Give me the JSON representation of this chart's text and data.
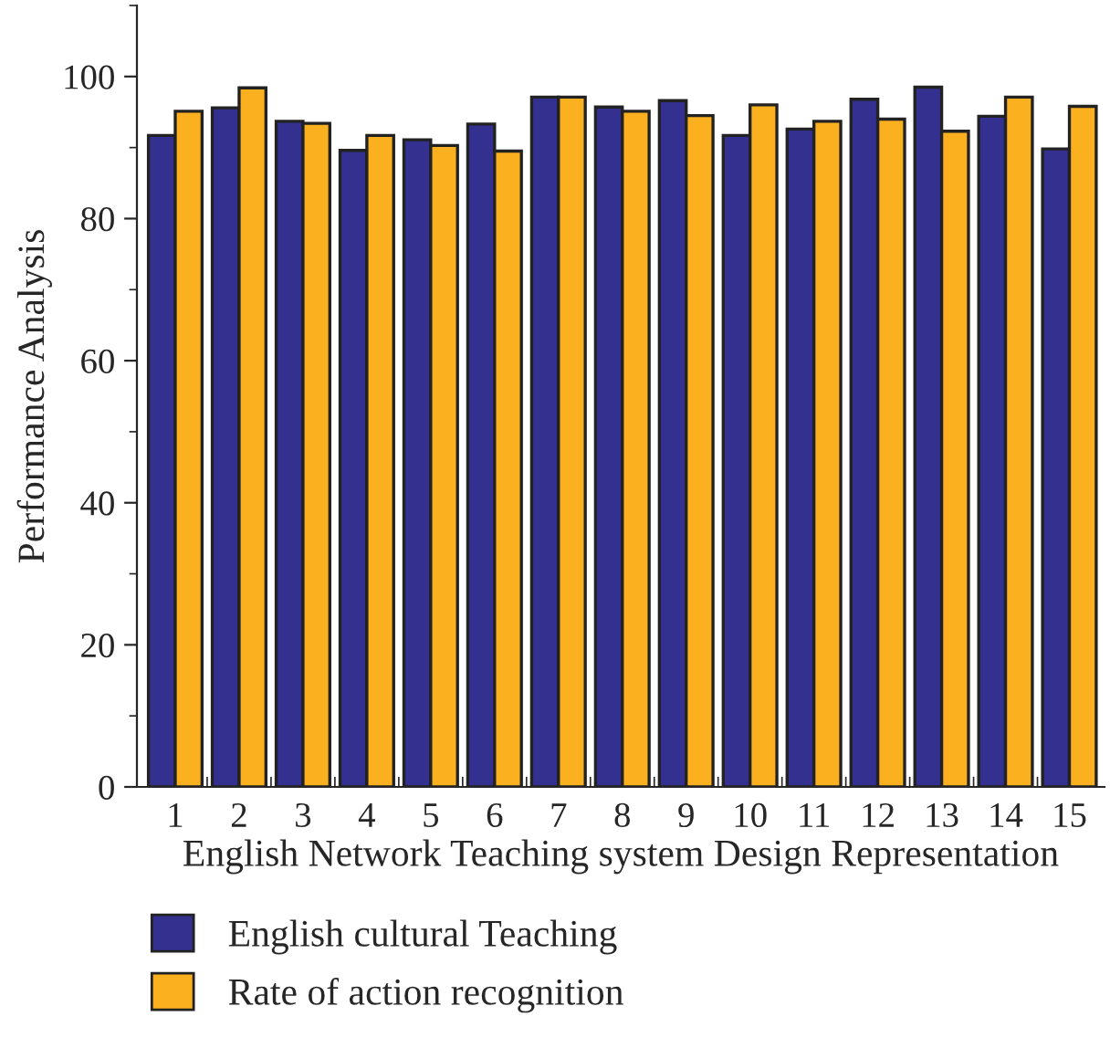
{
  "chart_data": {
    "type": "bar",
    "xlabel": "English Network Teaching system Design Representation",
    "ylabel": "Performance Analysis",
    "categories": [
      "1",
      "2",
      "3",
      "4",
      "5",
      "6",
      "7",
      "8",
      "9",
      "10",
      "11",
      "12",
      "13",
      "14",
      "15"
    ],
    "series": [
      {
        "name": "English cultural Teaching",
        "color": "#33308f",
        "values": [
          91.7,
          95.6,
          93.7,
          89.6,
          91.1,
          93.3,
          97.1,
          95.7,
          96.6,
          91.7,
          92.6,
          96.8,
          98.5,
          94.4,
          89.8
        ]
      },
      {
        "name": "Rate of action recognition",
        "color": "#fbb01f",
        "values": [
          95.1,
          98.4,
          93.4,
          91.7,
          90.3,
          89.5,
          97.1,
          95.1,
          94.5,
          96.0,
          93.7,
          94.0,
          92.3,
          97.1,
          95.8
        ]
      }
    ],
    "ylim": [
      0,
      110
    ],
    "yticks": [
      0,
      20,
      40,
      60,
      80,
      100
    ],
    "grid": false,
    "legend": "bottom left"
  }
}
